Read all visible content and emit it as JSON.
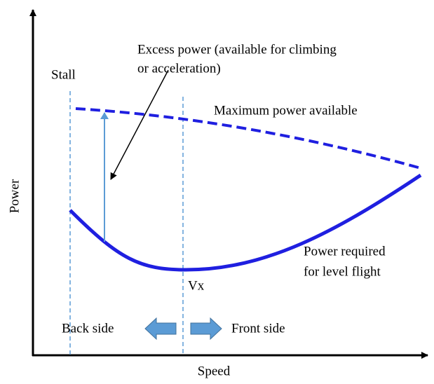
{
  "axes": {
    "y_label": "Power",
    "x_label": "Speed"
  },
  "labels": {
    "stall": "Stall",
    "excess_power": [
      "Excess power  (available for climbing",
      "or acceleration)"
    ],
    "max_power": "Maximum power  available",
    "power_required": [
      "Power required",
      "for level flight"
    ],
    "vx": "Vx",
    "back_side": "Back side",
    "front_side": "Front side"
  }
}
